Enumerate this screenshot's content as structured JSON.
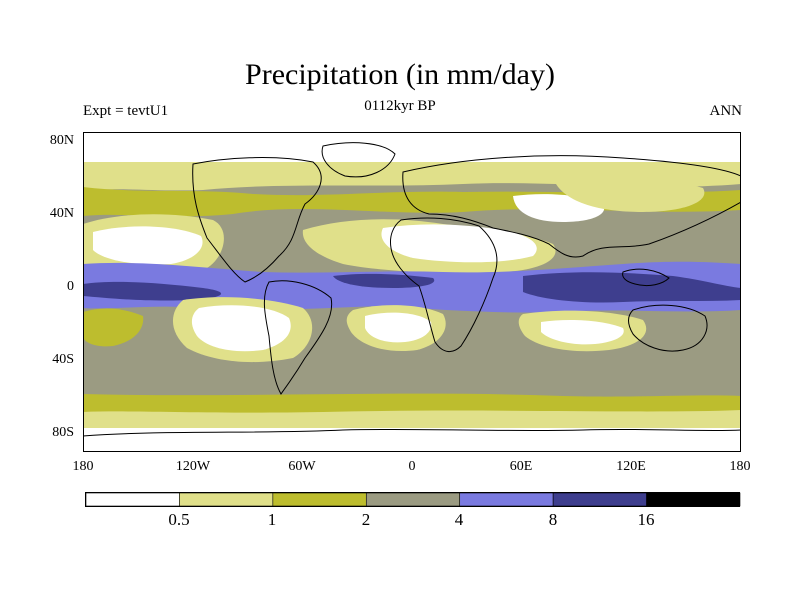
{
  "title": "Precipitation (in mm/day)",
  "subtitle_left": "Expt = tevtU1",
  "subtitle_center": "0112kyr BP",
  "subtitle_right": "ANN",
  "y_ticks": [
    "80N",
    "40N",
    "0",
    "40S",
    "80S"
  ],
  "x_ticks": [
    "180",
    "120W",
    "60W",
    "0",
    "60E",
    "120E",
    "180"
  ],
  "legend": {
    "labels": [
      "0.5",
      "1",
      "2",
      "4",
      "8",
      "16"
    ],
    "colors": [
      "#ffffff",
      "#e0e08a",
      "#bdbd2e",
      "#9b9b82",
      "#7a7ae0",
      "#3e3e8e",
      "#000000"
    ]
  },
  "chart_data": {
    "type": "heatmap",
    "title": "Precipitation (in mm/day)",
    "experiment": "Expt = tevtU1",
    "period": "0112kyr BP",
    "season": "ANN",
    "units": "mm/day",
    "xlim": [
      -180,
      180
    ],
    "ylim": [
      -90,
      90
    ],
    "contour_levels": [
      0.5,
      1,
      2,
      4,
      8,
      16
    ],
    "bands": [
      {
        "range": "<0.5",
        "color": "#ffffff"
      },
      {
        "range": "0.5-1",
        "color": "#e0e08a"
      },
      {
        "range": "1-2",
        "color": "#bdbd2e"
      },
      {
        "range": "2-4",
        "color": "#9b9b82"
      },
      {
        "range": "4-8",
        "color": "#7a7ae0"
      },
      {
        "range": "8-16",
        "color": "#3e3e8e"
      },
      {
        "range": ">16",
        "color": "#000000"
      }
    ]
  }
}
